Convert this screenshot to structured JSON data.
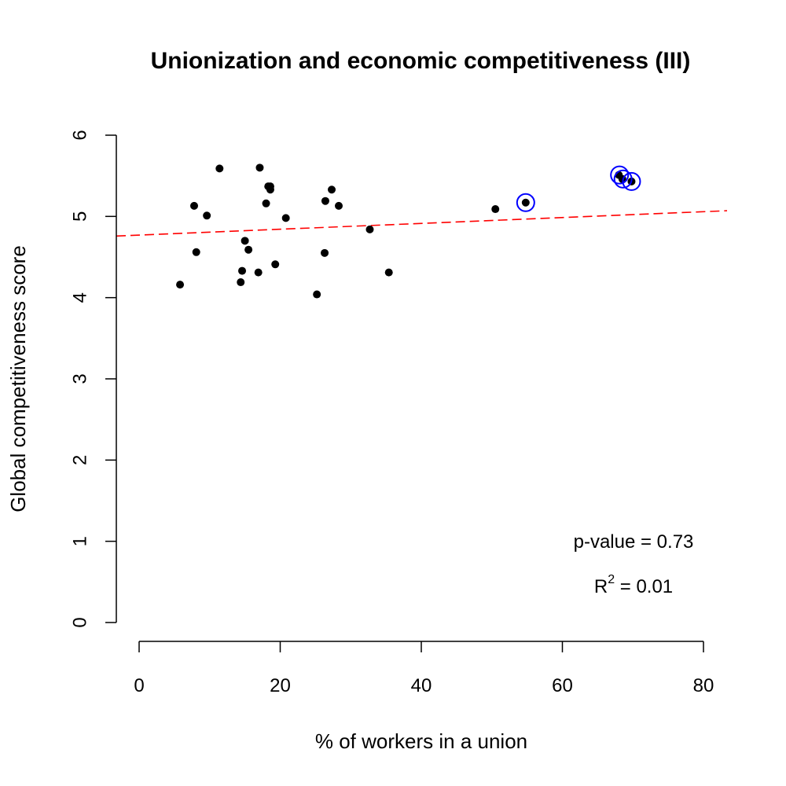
{
  "chart_data": {
    "type": "scatter",
    "title": "Unionization and economic competitiveness (III)",
    "xlabel": "% of workers in a union",
    "ylabel": "Global competitiveness score",
    "xlim": [
      0,
      80
    ],
    "ylim": [
      0,
      6
    ],
    "x_ticks": [
      0,
      20,
      40,
      60,
      80
    ],
    "y_ticks": [
      0,
      1,
      2,
      3,
      4,
      5,
      6
    ],
    "grid": false,
    "points": [
      {
        "x": 5.8,
        "y": 4.16
      },
      {
        "x": 7.8,
        "y": 5.13
      },
      {
        "x": 8.1,
        "y": 4.56
      },
      {
        "x": 9.6,
        "y": 5.01
      },
      {
        "x": 11.4,
        "y": 5.59
      },
      {
        "x": 14.4,
        "y": 4.19
      },
      {
        "x": 14.6,
        "y": 4.33
      },
      {
        "x": 15.0,
        "y": 4.7
      },
      {
        "x": 15.5,
        "y": 4.59
      },
      {
        "x": 16.9,
        "y": 4.31
      },
      {
        "x": 17.1,
        "y": 5.6
      },
      {
        "x": 18.0,
        "y": 5.16
      },
      {
        "x": 18.3,
        "y": 5.37
      },
      {
        "x": 18.6,
        "y": 5.37
      },
      {
        "x": 18.6,
        "y": 5.33
      },
      {
        "x": 19.3,
        "y": 4.41
      },
      {
        "x": 20.8,
        "y": 4.98
      },
      {
        "x": 25.2,
        "y": 4.04
      },
      {
        "x": 26.3,
        "y": 4.55
      },
      {
        "x": 26.4,
        "y": 5.19
      },
      {
        "x": 27.3,
        "y": 5.33
      },
      {
        "x": 28.3,
        "y": 5.13
      },
      {
        "x": 32.7,
        "y": 4.84
      },
      {
        "x": 35.4,
        "y": 4.31
      },
      {
        "x": 50.5,
        "y": 5.09
      },
      {
        "x": 54.8,
        "y": 5.17
      },
      {
        "x": 68.0,
        "y": 5.51
      },
      {
        "x": 68.5,
        "y": 5.46
      },
      {
        "x": 69.8,
        "y": 5.43
      }
    ],
    "highlighted": [
      {
        "x": 54.8,
        "y": 5.17
      },
      {
        "x": 68.1,
        "y": 5.51
      },
      {
        "x": 68.6,
        "y": 5.46
      },
      {
        "x": 69.8,
        "y": 5.43
      }
    ],
    "regression_line": {
      "intercept": 4.77,
      "slope": 0.0036,
      "color": "#ff0000",
      "style": "dashed"
    },
    "point_color": "#000000",
    "highlight_color": "#0000ff",
    "annotations": {
      "p_value": "p-value = 0.73",
      "r2_prefix": "R",
      "r2_sup": "2",
      "r2_suffix": " = 0.01"
    }
  }
}
